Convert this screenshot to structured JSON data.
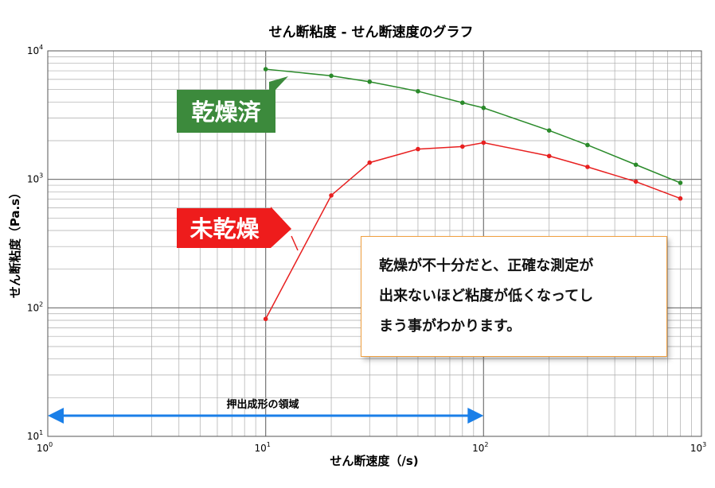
{
  "chart_data": {
    "type": "line",
    "title": "せん断粘度 - せん断速度のグラフ",
    "xlabel": "せん断速度（/s)",
    "ylabel": "せん断粘度（Pa.s）",
    "x_scale": "log",
    "y_scale": "log",
    "xlim": [
      1,
      1000
    ],
    "ylim": [
      10,
      10000
    ],
    "x_ticks": [
      {
        "base": "10",
        "exp": "0"
      },
      {
        "base": "10",
        "exp": "1"
      },
      {
        "base": "10",
        "exp": "2"
      },
      {
        "base": "10",
        "exp": "3"
      }
    ],
    "y_ticks": [
      {
        "base": "10",
        "exp": "1"
      },
      {
        "base": "10",
        "exp": "2"
      },
      {
        "base": "10",
        "exp": "3"
      },
      {
        "base": "10",
        "exp": "4"
      }
    ],
    "grid": true,
    "series": [
      {
        "name": "乾燥済",
        "color": "#2a8a2a",
        "x": [
          10,
          20,
          30,
          50,
          80,
          100,
          200,
          300,
          500,
          800
        ],
        "y": [
          7200,
          6400,
          5750,
          4850,
          3950,
          3600,
          2400,
          1850,
          1300,
          940
        ]
      },
      {
        "name": "未乾燥",
        "color": "#e82020",
        "x": [
          10,
          20,
          30,
          50,
          80,
          100,
          200,
          300,
          500,
          800
        ],
        "y": [
          82,
          750,
          1350,
          1720,
          1800,
          1930,
          1520,
          1250,
          960,
          710
        ]
      }
    ],
    "annotations": {
      "dried_label": "乾燥済",
      "dried_color": "#3c8a3c",
      "undried_label": "未乾燥",
      "undried_color": "#ee1c1c",
      "range": {
        "label": "押出成形の領域",
        "x_start": 1,
        "x_end": 100,
        "color": "#1a7fe8"
      },
      "note_lines": [
        "乾燥が不十分だと、正確な測定が",
        "出来ないほど粘度が低くなってし",
        "まう事がわかります。"
      ]
    }
  }
}
